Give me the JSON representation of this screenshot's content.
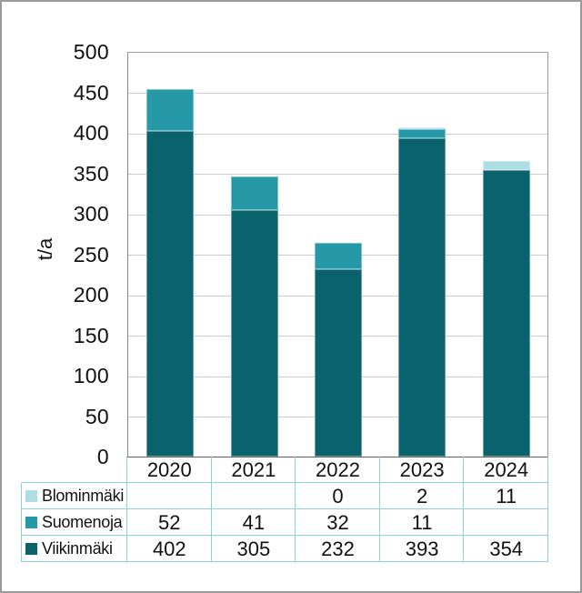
{
  "chart_data": {
    "type": "bar",
    "stacked": true,
    "title": "",
    "categories": [
      "2020",
      "2021",
      "2022",
      "2023",
      "2024"
    ],
    "series": [
      {
        "name": "Blominmäki",
        "color": "#aedde4",
        "values": [
          null,
          null,
          0,
          2,
          11
        ]
      },
      {
        "name": "Suomenoja",
        "color": "#2699a8",
        "values": [
          52,
          41,
          32,
          11,
          null
        ]
      },
      {
        "name": "Viikinmäki",
        "color": "#0a626d",
        "values": [
          402,
          305,
          232,
          393,
          354
        ]
      }
    ],
    "stack_order_bottom_to_top": [
      "Viikinmäki",
      "Suomenoja",
      "Blominmäki"
    ],
    "xlabel": "",
    "ylabel": "t/a",
    "ylim": [
      0,
      500
    ],
    "yticks": [
      0,
      50,
      100,
      150,
      200,
      250,
      300,
      350,
      400,
      450,
      500
    ],
    "grid": true,
    "legend_position": "data-table-below-with-legend-keys"
  },
  "style": {
    "table_border_color": "#8cd2db",
    "gridline_color": "#cccccc",
    "text_color": "#111111"
  }
}
